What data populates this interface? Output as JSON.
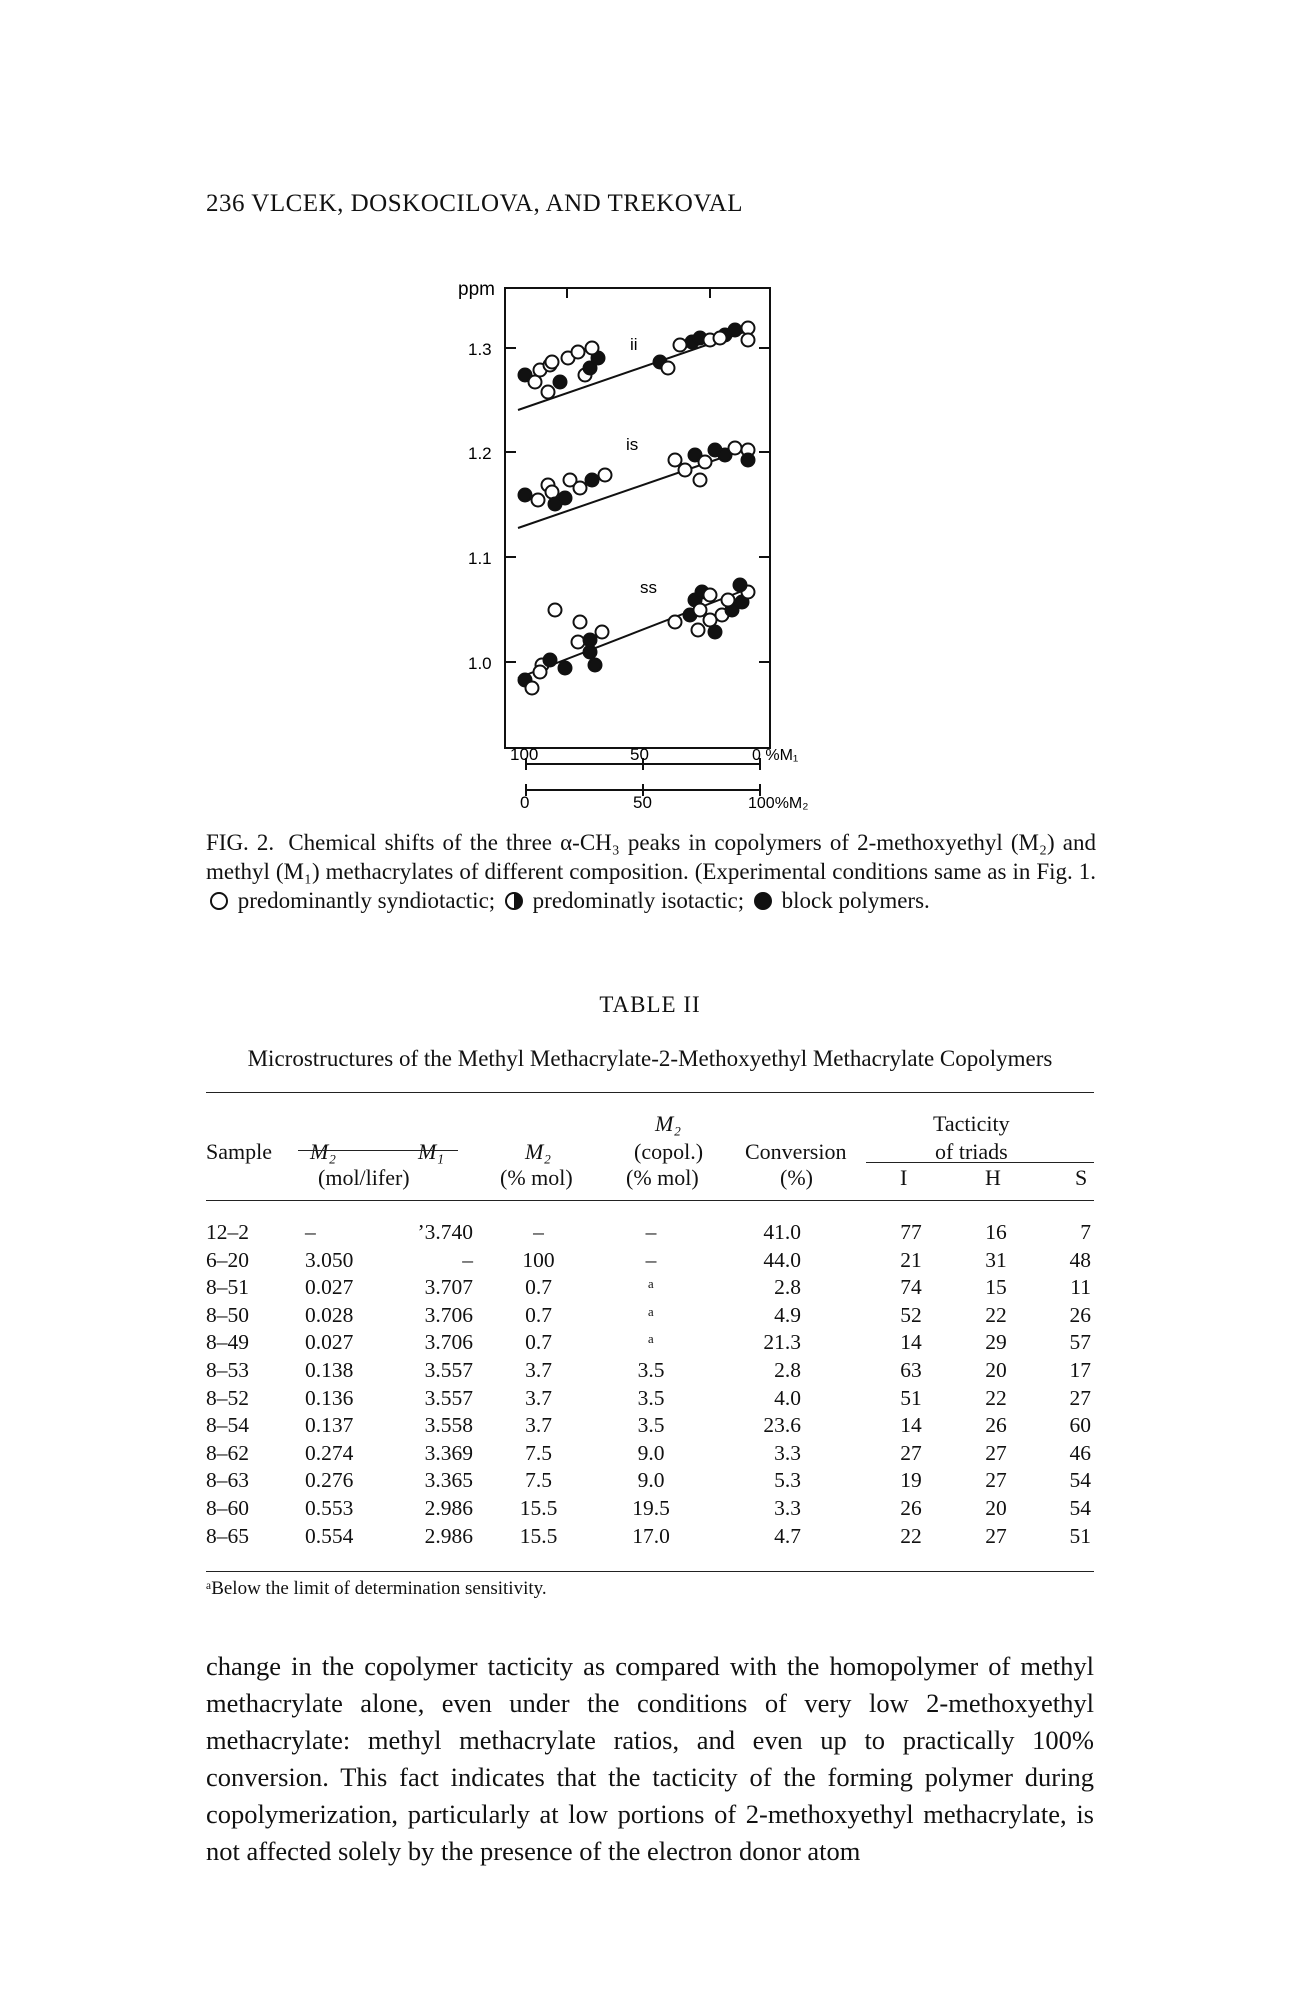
{
  "header": "236 VLCEK, DOSKOCILOVA, AND TREKOVAL",
  "figure": {
    "ppm_label": "ppm",
    "y_ticks": [
      "1.3",
      "1.2",
      "1.1",
      "1.0"
    ],
    "band_labels": [
      "ii",
      "is",
      "ss"
    ],
    "x_top_ticks": [
      "100",
      "50",
      "0 %M₁"
    ],
    "x_bottom_ticks": [
      "0",
      "50",
      "100%M₂"
    ]
  },
  "caption": {
    "label": "FIG. 2.",
    "text_a": "Chemical shifts of the three α-CH₃ peaks in copolymers of 2-methoxyethyl (M₂) and methyl (M₁) methacrylates of different composition. (Experimental conditions same as in Fig. 1.",
    "open_text": "predominantly syndiotactic;",
    "half_text": "predominatly isotactic;",
    "full_text": "block polymers."
  },
  "table": {
    "title": "TABLE II",
    "subtitle": "Microstructures of the Methyl Methacrylate-2-Methoxyethyl Methacrylate Copolymers",
    "headers": {
      "sample": "Sample",
      "m2": "M₂",
      "m1": "M₁",
      "mol_lifer": "(mol/lifer)",
      "m2_pct": "M₂",
      "m2_pct_unit": "(% mol)",
      "m2_copol": "M₂",
      "copol": "(copol.)",
      "copol_unit": "(% mol)",
      "conversion": "Conversion",
      "conversion_unit": "(%)",
      "tacticity": "Tacticity",
      "of_triads": "of triads",
      "i": "I",
      "h": "H",
      "s": "S"
    },
    "rows": [
      {
        "sample": "12–2",
        "m2": "–",
        "m1": "ʼ3.740",
        "m2p": "–",
        "m2c": "–",
        "conv": "41.0",
        "i": "77",
        "h": "16",
        "s": "7"
      },
      {
        "sample": "6–20",
        "m2": "3.050",
        "m1": "–",
        "m2p": "100",
        "m2c": "–",
        "conv": "44.0",
        "i": "21",
        "h": "31",
        "s": "48"
      },
      {
        "sample": "8–51",
        "m2": "0.027",
        "m1": "3.707",
        "m2p": "0.7",
        "m2c": "ᵃ",
        "conv": "2.8",
        "i": "74",
        "h": "15",
        "s": "11"
      },
      {
        "sample": "8–50",
        "m2": "0.028",
        "m1": "3.706",
        "m2p": "0.7",
        "m2c": "ᵃ",
        "conv": "4.9",
        "i": "52",
        "h": "22",
        "s": "26"
      },
      {
        "sample": "8–49",
        "m2": "0.027",
        "m1": "3.706",
        "m2p": "0.7",
        "m2c": "ᵃ",
        "conv": "21.3",
        "i": "14",
        "h": "29",
        "s": "57"
      },
      {
        "sample": "8–53",
        "m2": "0.138",
        "m1": "3.557",
        "m2p": "3.7",
        "m2c": "3.5",
        "conv": "2.8",
        "i": "63",
        "h": "20",
        "s": "17"
      },
      {
        "sample": "8–52",
        "m2": "0.136",
        "m1": "3.557",
        "m2p": "3.7",
        "m2c": "3.5",
        "conv": "4.0",
        "i": "51",
        "h": "22",
        "s": "27"
      },
      {
        "sample": "8–54",
        "m2": "0.137",
        "m1": "3.558",
        "m2p": "3.7",
        "m2c": "3.5",
        "conv": "23.6",
        "i": "14",
        "h": "26",
        "s": "60"
      },
      {
        "sample": "8–62",
        "m2": "0.274",
        "m1": "3.369",
        "m2p": "7.5",
        "m2c": "9.0",
        "conv": "3.3",
        "i": "27",
        "h": "27",
        "s": "46"
      },
      {
        "sample": "8–63",
        "m2": "0.276",
        "m1": "3.365",
        "m2p": "7.5",
        "m2c": "9.0",
        "conv": "5.3",
        "i": "19",
        "h": "27",
        "s": "54"
      },
      {
        "sample": "8–60",
        "m2": "0.553",
        "m1": "2.986",
        "m2p": "15.5",
        "m2c": "19.5",
        "conv": "3.3",
        "i": "26",
        "h": "20",
        "s": "54"
      },
      {
        "sample": "8–65",
        "m2": "0.554",
        "m1": "2.986",
        "m2p": "15.5",
        "m2c": "17.0",
        "conv": "4.7",
        "i": "22",
        "h": "27",
        "s": "51"
      }
    ],
    "footnote": "ᵃBelow the limit of determination sensitivity."
  },
  "body_text": "change in the copolymer tacticity as compared with the homopolymer of methyl methacrylate alone, even under the conditions of very low 2-methoxyethyl methacrylate: methyl methacrylate ratios, and even up to practically 100% conversion. This fact indicates that the tacticity of the forming polymer during copolymerization, particularly at low portions of 2-methoxyethyl methacrylate, is not affected solely by the presence of the electron donor atom"
}
